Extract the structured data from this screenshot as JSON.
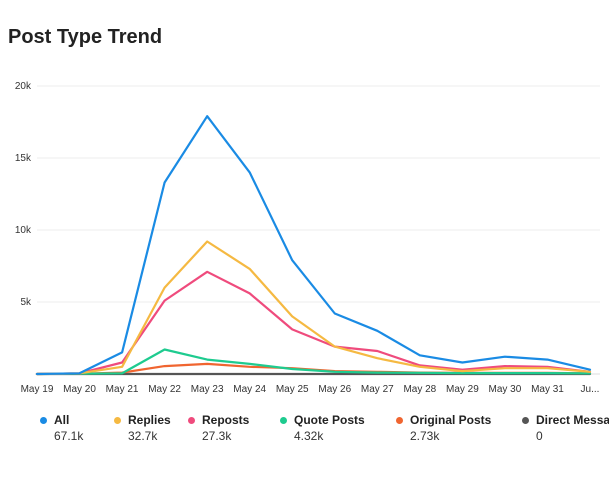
{
  "chart_data": {
    "type": "line",
    "title": "Post Type Trend",
    "x": [
      "May 19",
      "May 20",
      "May 21",
      "May 22",
      "May 23",
      "May 24",
      "May 25",
      "May 26",
      "May 27",
      "May 28",
      "May 29",
      "May 30",
      "May 31",
      "Ju..."
    ],
    "y_ticks": [
      "5k",
      "10k",
      "15k",
      "20k"
    ],
    "ylim": [
      0,
      20000
    ],
    "grid": true,
    "legend_position": "bottom",
    "series": [
      {
        "name": "All",
        "color": "#1a8be4",
        "total": "67.1k",
        "values": [
          0,
          50,
          1500,
          13300,
          17900,
          14000,
          7900,
          4200,
          3000,
          1300,
          800,
          1200,
          1000,
          300
        ]
      },
      {
        "name": "Replies",
        "color": "#f5b942",
        "total": "32.7k",
        "values": [
          0,
          50,
          500,
          6000,
          9200,
          7300,
          4000,
          1900,
          1100,
          500,
          200,
          400,
          400,
          150
        ]
      },
      {
        "name": "Reposts",
        "color": "#ef4b7d",
        "total": "27.3k",
        "values": [
          0,
          50,
          800,
          5100,
          7100,
          5600,
          3100,
          1900,
          1600,
          600,
          300,
          550,
          500,
          150
        ]
      },
      {
        "name": "Quote Posts",
        "color": "#1ecb8f",
        "total": "4.32k",
        "values": [
          0,
          20,
          50,
          1700,
          1000,
          700,
          350,
          150,
          100,
          80,
          60,
          60,
          60,
          40
        ]
      },
      {
        "name": "Original Posts",
        "color": "#f06530",
        "total": "2.73k",
        "values": [
          0,
          20,
          100,
          550,
          700,
          500,
          400,
          200,
          150,
          100,
          80,
          80,
          80,
          50
        ]
      },
      {
        "name": "Direct Messages",
        "color": "#555555",
        "total": "0",
        "values": [
          0,
          0,
          0,
          0,
          0,
          0,
          0,
          0,
          0,
          0,
          0,
          0,
          0,
          0
        ]
      }
    ]
  }
}
